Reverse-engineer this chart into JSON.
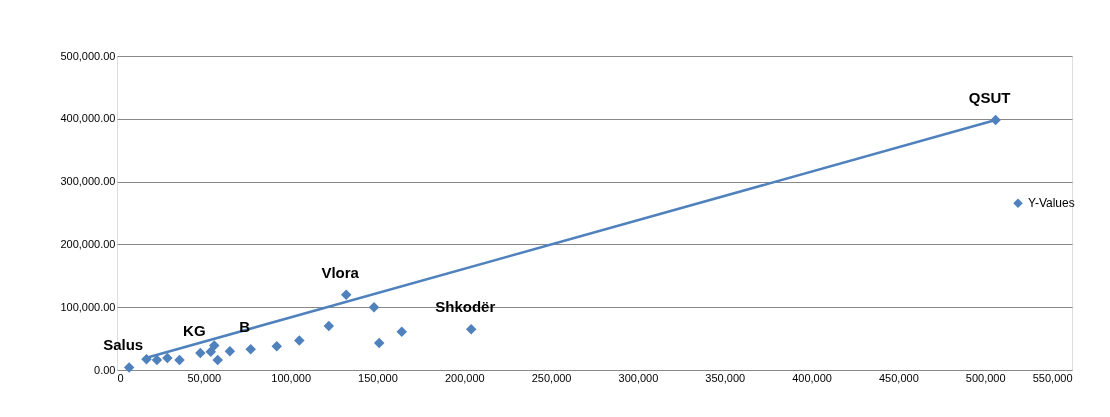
{
  "chart_data": {
    "type": "scatter",
    "series": [
      {
        "name": "Y-Values",
        "color": "#4f81bd",
        "x": [
          7000,
          17000,
          23000,
          29000,
          36000,
          48000,
          54000,
          56000,
          58000,
          65000,
          77000,
          92000,
          105000,
          122000,
          132000,
          148000,
          151000,
          164000,
          204000,
          506000
        ],
        "values": [
          4000,
          17000,
          16000,
          19000,
          16000,
          27000,
          29000,
          39000,
          16000,
          30000,
          33000,
          38000,
          47000,
          70000,
          120000,
          100000,
          43000,
          61000,
          65000,
          398000
        ]
      },
      {
        "type": "line",
        "color": "#4f81bd",
        "line_style": "solid",
        "marker": "none",
        "x": [
          15000,
          506000
        ],
        "values": [
          18000,
          398000
        ]
      }
    ],
    "xlim": [
      0,
      550000
    ],
    "xticks": [
      0,
      {
        "value": 50000,
        "label": "50,000"
      },
      {
        "value": 100000,
        "label": "100,000"
      },
      {
        "value": 150000,
        "label": "150,000"
      },
      {
        "value": 200000,
        "label": "200,000"
      },
      {
        "value": 250000,
        "label": "250,000"
      },
      {
        "value": 300000,
        "label": "300,000"
      },
      {
        "value": 350000,
        "label": "350,000"
      },
      {
        "value": 400000,
        "label": "400,000"
      },
      {
        "value": 450000,
        "label": "450,000"
      },
      {
        "value": 500000,
        "label": "500,000"
      },
      {
        "value": 550000,
        "label": "550,000"
      }
    ],
    "ylim": [
      0,
      500000
    ],
    "yticks": [
      {
        "value": 0,
        "label": "0.00"
      },
      {
        "value": 100000,
        "label": "100,000.00"
      },
      {
        "value": 200000,
        "label": "200,000.00"
      },
      {
        "value": 300000,
        "label": "300,000.00"
      },
      {
        "value": 400000,
        "label": "400,000.00"
      },
      {
        "value": 500000,
        "label": "500,000.00"
      }
    ],
    "annotations": [
      {
        "text": "QSUT",
        "x": 506000,
        "y": 398000
      },
      {
        "text": "Vlora",
        "x": 132000,
        "y": 120000
      },
      {
        "text": "Shkodër",
        "x": 204000,
        "y": 65000
      },
      {
        "text": "Salus",
        "x": 7000,
        "y": 4000
      },
      {
        "text": "KG",
        "x": 48000,
        "y": 27000
      },
      {
        "text": "B",
        "x": 77000,
        "y": 33000
      }
    ],
    "grid": "y",
    "legend": "right",
    "marker": "diamond"
  }
}
